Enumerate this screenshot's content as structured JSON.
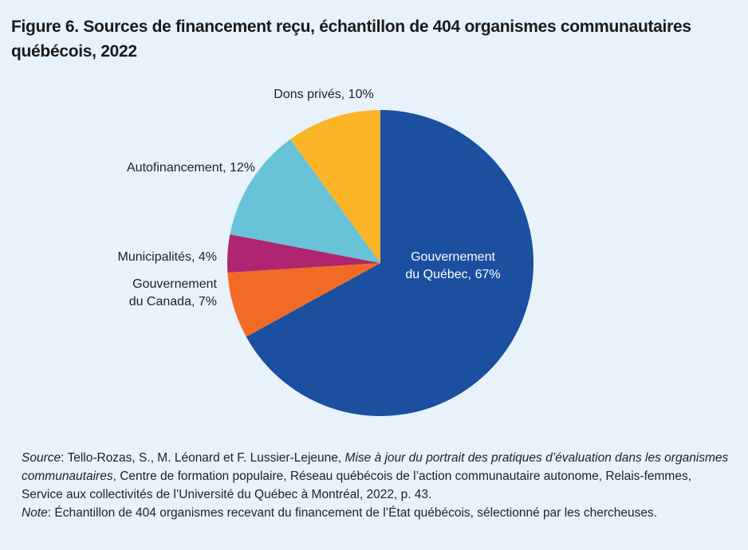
{
  "header": {
    "title_line1": "Figure 6. Sources de financement reçu, échantillon de 404 organismes communautaires",
    "title_line2": "québécois, 2022"
  },
  "chart_data": {
    "type": "pie",
    "title": "Figure 6. Sources de financement reçu, échantillon de 404 organismes communautaires québécois, 2022",
    "unit": "%",
    "slices": [
      {
        "label": "Gouvernement du Québec",
        "value": 67,
        "color": "#1b4fa0",
        "text_lines": [
          "Gouvernement",
          "du Québec, 67%"
        ]
      },
      {
        "label": "Gouvernement du Canada",
        "value": 7,
        "color": "#f26b25",
        "text_lines": [
          "Gouvernement",
          "du Canada, 7%"
        ]
      },
      {
        "label": "Municipalités",
        "value": 4,
        "color": "#b0256f",
        "text_lines": [
          "Municipalités, 4%"
        ]
      },
      {
        "label": "Autofinancement",
        "value": 12,
        "color": "#69c3d8",
        "text_lines": [
          "Autofinancement, 12%"
        ]
      },
      {
        "label": "Dons privés",
        "value": 10,
        "color": "#fbb527",
        "text_lines": [
          "Dons privés, 10%"
        ]
      }
    ]
  },
  "footer": {
    "source_label": "Source",
    "source_text1": ": Tello-Rozas, S., M. Léonard et F. Lussier-Lejeune, ",
    "source_title": "Mise à jour du portrait des pratiques d’évaluation dans les organismes communautaires",
    "source_text2": ", Centre de formation populaire, Réseau québécois de l’action communautaire autonome, Relais-femmes, Service aux collectivités de l’Université du Québec à Montréal, 2022, p. 43.",
    "note_label": "Note",
    "note_text": ": Échantillon de 404 organismes recevant du financement de l’État québécois, sélectionné par les chercheuses."
  }
}
